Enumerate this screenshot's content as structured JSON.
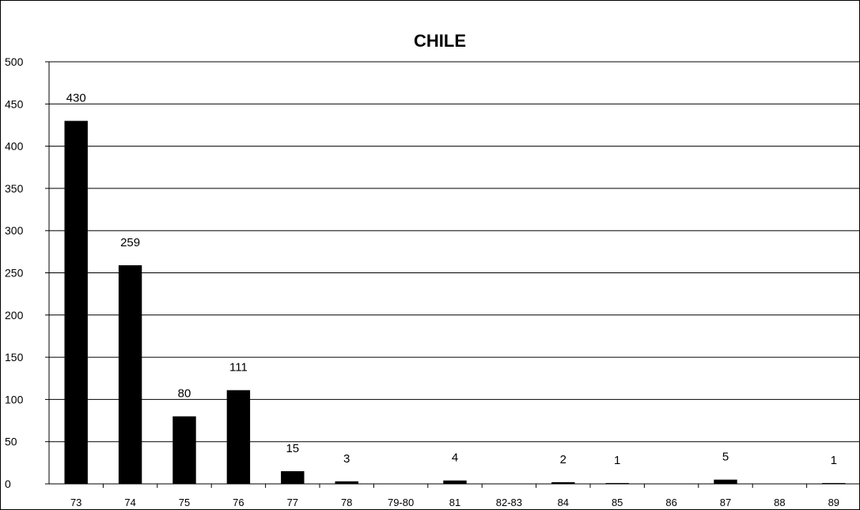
{
  "chart_data": {
    "type": "bar",
    "title": "CHILE",
    "xlabel": "",
    "ylabel": "",
    "categories": [
      "73",
      "74",
      "75",
      "76",
      "77",
      "78",
      "79-80",
      "81",
      "82-83",
      "84",
      "85",
      "86",
      "87",
      "88",
      "89"
    ],
    "values": [
      430,
      259,
      80,
      111,
      15,
      3,
      0,
      4,
      0,
      2,
      1,
      0,
      5,
      0,
      1
    ],
    "data_labels": [
      "430",
      "259",
      "80",
      "111",
      "15",
      "3",
      "",
      "4",
      "",
      "2",
      "1",
      "",
      "5",
      "",
      "1"
    ],
    "ylim": [
      0,
      500
    ],
    "yticks": [
      0,
      50,
      100,
      150,
      200,
      250,
      300,
      350,
      400,
      450,
      500
    ],
    "grid": true,
    "legend": "none",
    "bar_color": "#000000",
    "grid_color": "#000000"
  }
}
